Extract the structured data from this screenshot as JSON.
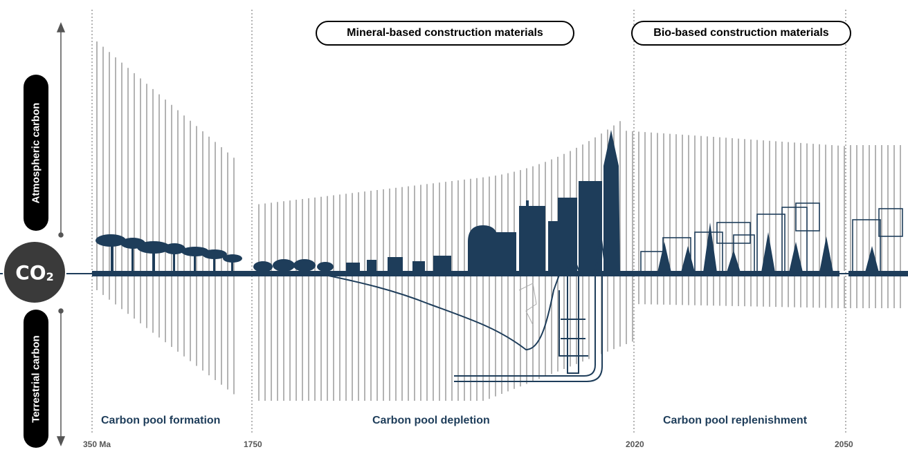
{
  "axis": {
    "top_label": "Atmospheric carbon",
    "bottom_label": "Terrestrial carbon",
    "center_label": "CO",
    "center_sub": "2"
  },
  "materials": {
    "mineral": "Mineral-based construction materials",
    "bio": "Bio-based construction materials"
  },
  "phases": {
    "formation": "Carbon pool formation",
    "depletion": "Carbon pool depletion",
    "replenishment": "Carbon pool replenishment"
  },
  "timeline": {
    "t0": "350 Ma",
    "t1": "1750",
    "t2": "2020",
    "t3": "2050"
  },
  "colors": {
    "dark_navy": "#1e3d5a",
    "hatch_gray": "#8a8a8a",
    "co2_fill": "#3a3a3a"
  }
}
